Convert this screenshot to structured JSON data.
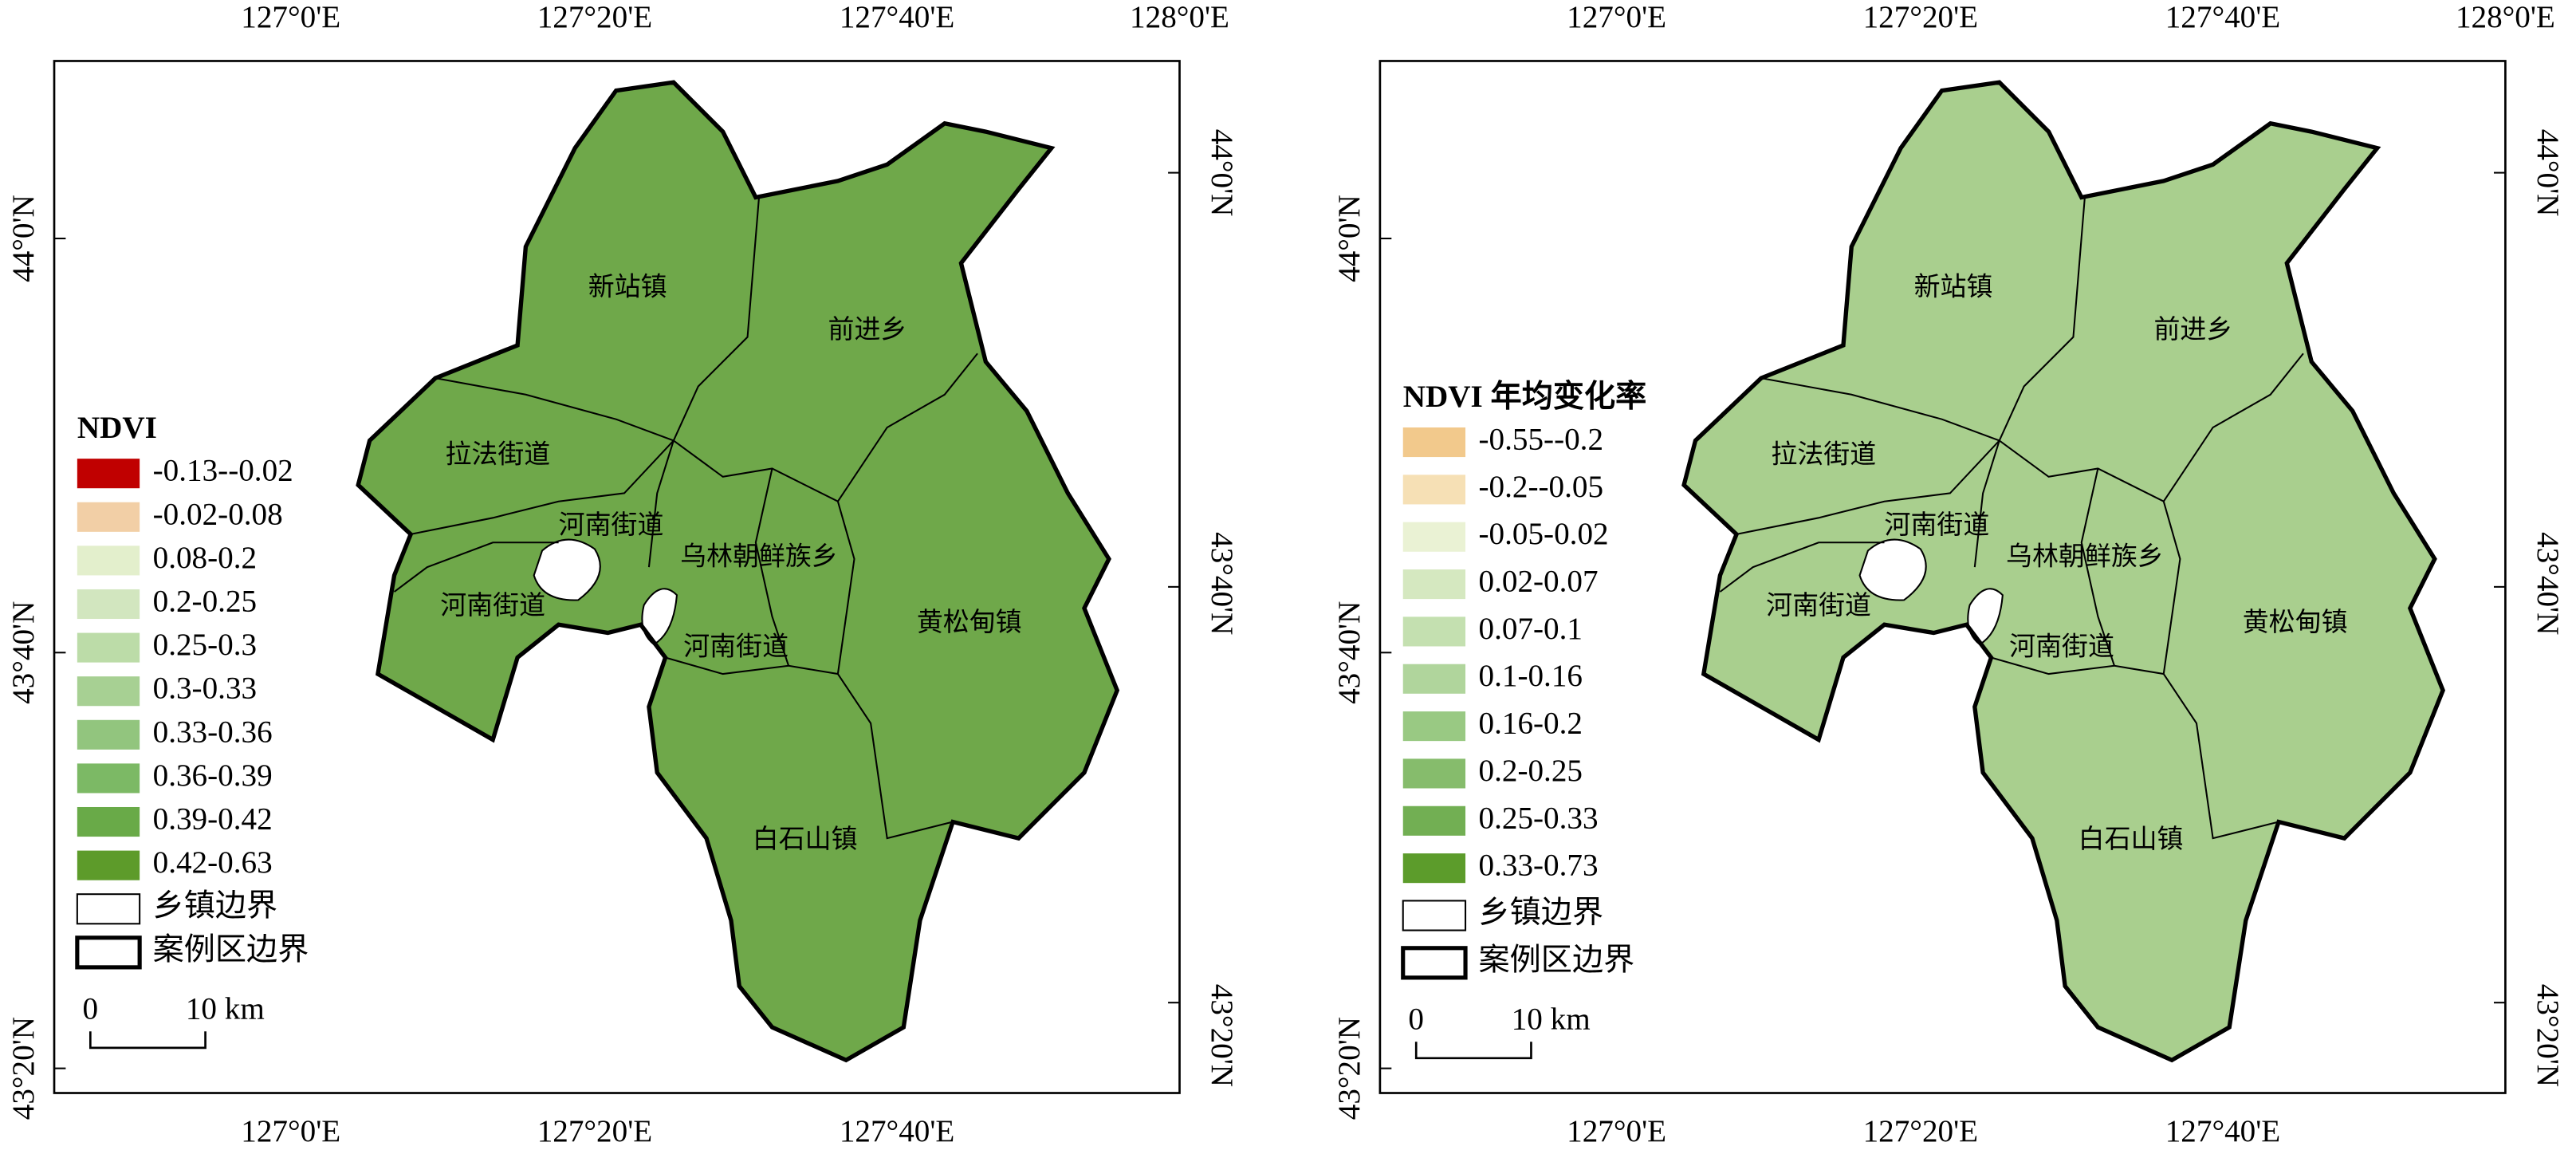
{
  "maps": [
    {
      "top_ticks": [
        "127°0'E",
        "127°20'E",
        "127°40'E",
        "128°0'E"
      ],
      "bottom_ticks": [
        "127°0'E",
        "127°20'E",
        "127°40'E"
      ],
      "left_ticks": [
        "44°0'N",
        "43°40'N",
        "43°20'N"
      ],
      "right_ticks": [
        "44°0'N",
        "43°40'N",
        "43°20'N"
      ],
      "fill": "#6fa84a",
      "towns": [
        "新站镇",
        "前进乡",
        "拉法街道",
        "河南街道",
        "乌林朝鲜族乡",
        "河南街道",
        "黄松甸镇",
        "河南街道",
        "白石山镇"
      ],
      "legend": {
        "title": "NDVI",
        "items": [
          {
            "label": "-0.13--0.02",
            "color": "#c00000"
          },
          {
            "label": "-0.02-0.08",
            "color": "#f2cfa6"
          },
          {
            "label": "0.08-0.2",
            "color": "#e3efcc"
          },
          {
            "label": "0.2-0.25",
            "color": "#d2e6bf"
          },
          {
            "label": "0.25-0.3",
            "color": "#bcdca8"
          },
          {
            "label": "0.3-0.33",
            "color": "#a7d093"
          },
          {
            "label": "0.33-0.36",
            "color": "#92c57e"
          },
          {
            "label": "0.36-0.39",
            "color": "#7cb965"
          },
          {
            "label": "0.39-0.42",
            "color": "#69aa48"
          },
          {
            "label": "0.42-0.63",
            "color": "#5d9b2a"
          }
        ],
        "town_boundary": "乡镇边界",
        "area_boundary": "案例区边界"
      },
      "scale": {
        "zero": "0",
        "label": "10 km"
      }
    },
    {
      "top_ticks": [
        "127°0'E",
        "127°20'E",
        "127°40'E",
        "128°0'E"
      ],
      "bottom_ticks": [
        "127°0'E",
        "127°20'E",
        "127°40'E"
      ],
      "left_ticks": [
        "44°0'N",
        "43°40'N",
        "43°20'N"
      ],
      "right_ticks": [
        "44°0'N",
        "43°40'N",
        "43°20'N"
      ],
      "fill": "#a9cf8e",
      "towns": [
        "新站镇",
        "前进乡",
        "拉法街道",
        "河南街道",
        "乌林朝鲜族乡",
        "河南街道",
        "黄松甸镇",
        "河南街道",
        "白石山镇"
      ],
      "legend": {
        "title": "NDVI 年均变化率",
        "items": [
          {
            "label": "-0.55--0.2",
            "color": "#f2c98c"
          },
          {
            "label": "-0.2--0.05",
            "color": "#f6e0b5"
          },
          {
            "label": "-0.05-0.02",
            "color": "#eaf2d4"
          },
          {
            "label": "0.02-0.07",
            "color": "#d5e8c0"
          },
          {
            "label": "0.07-0.1",
            "color": "#c4e0b0"
          },
          {
            "label": "0.1-0.16",
            "color": "#b0d59c"
          },
          {
            "label": "0.16-0.2",
            "color": "#99c983"
          },
          {
            "label": "0.2-0.25",
            "color": "#86bc6c"
          },
          {
            "label": "0.25-0.33",
            "color": "#72af53"
          },
          {
            "label": "0.33-0.73",
            "color": "#5c9c2b"
          }
        ],
        "town_boundary": "乡镇边界",
        "area_boundary": "案例区边界"
      },
      "scale": {
        "zero": "0",
        "label": "10 km"
      }
    }
  ]
}
